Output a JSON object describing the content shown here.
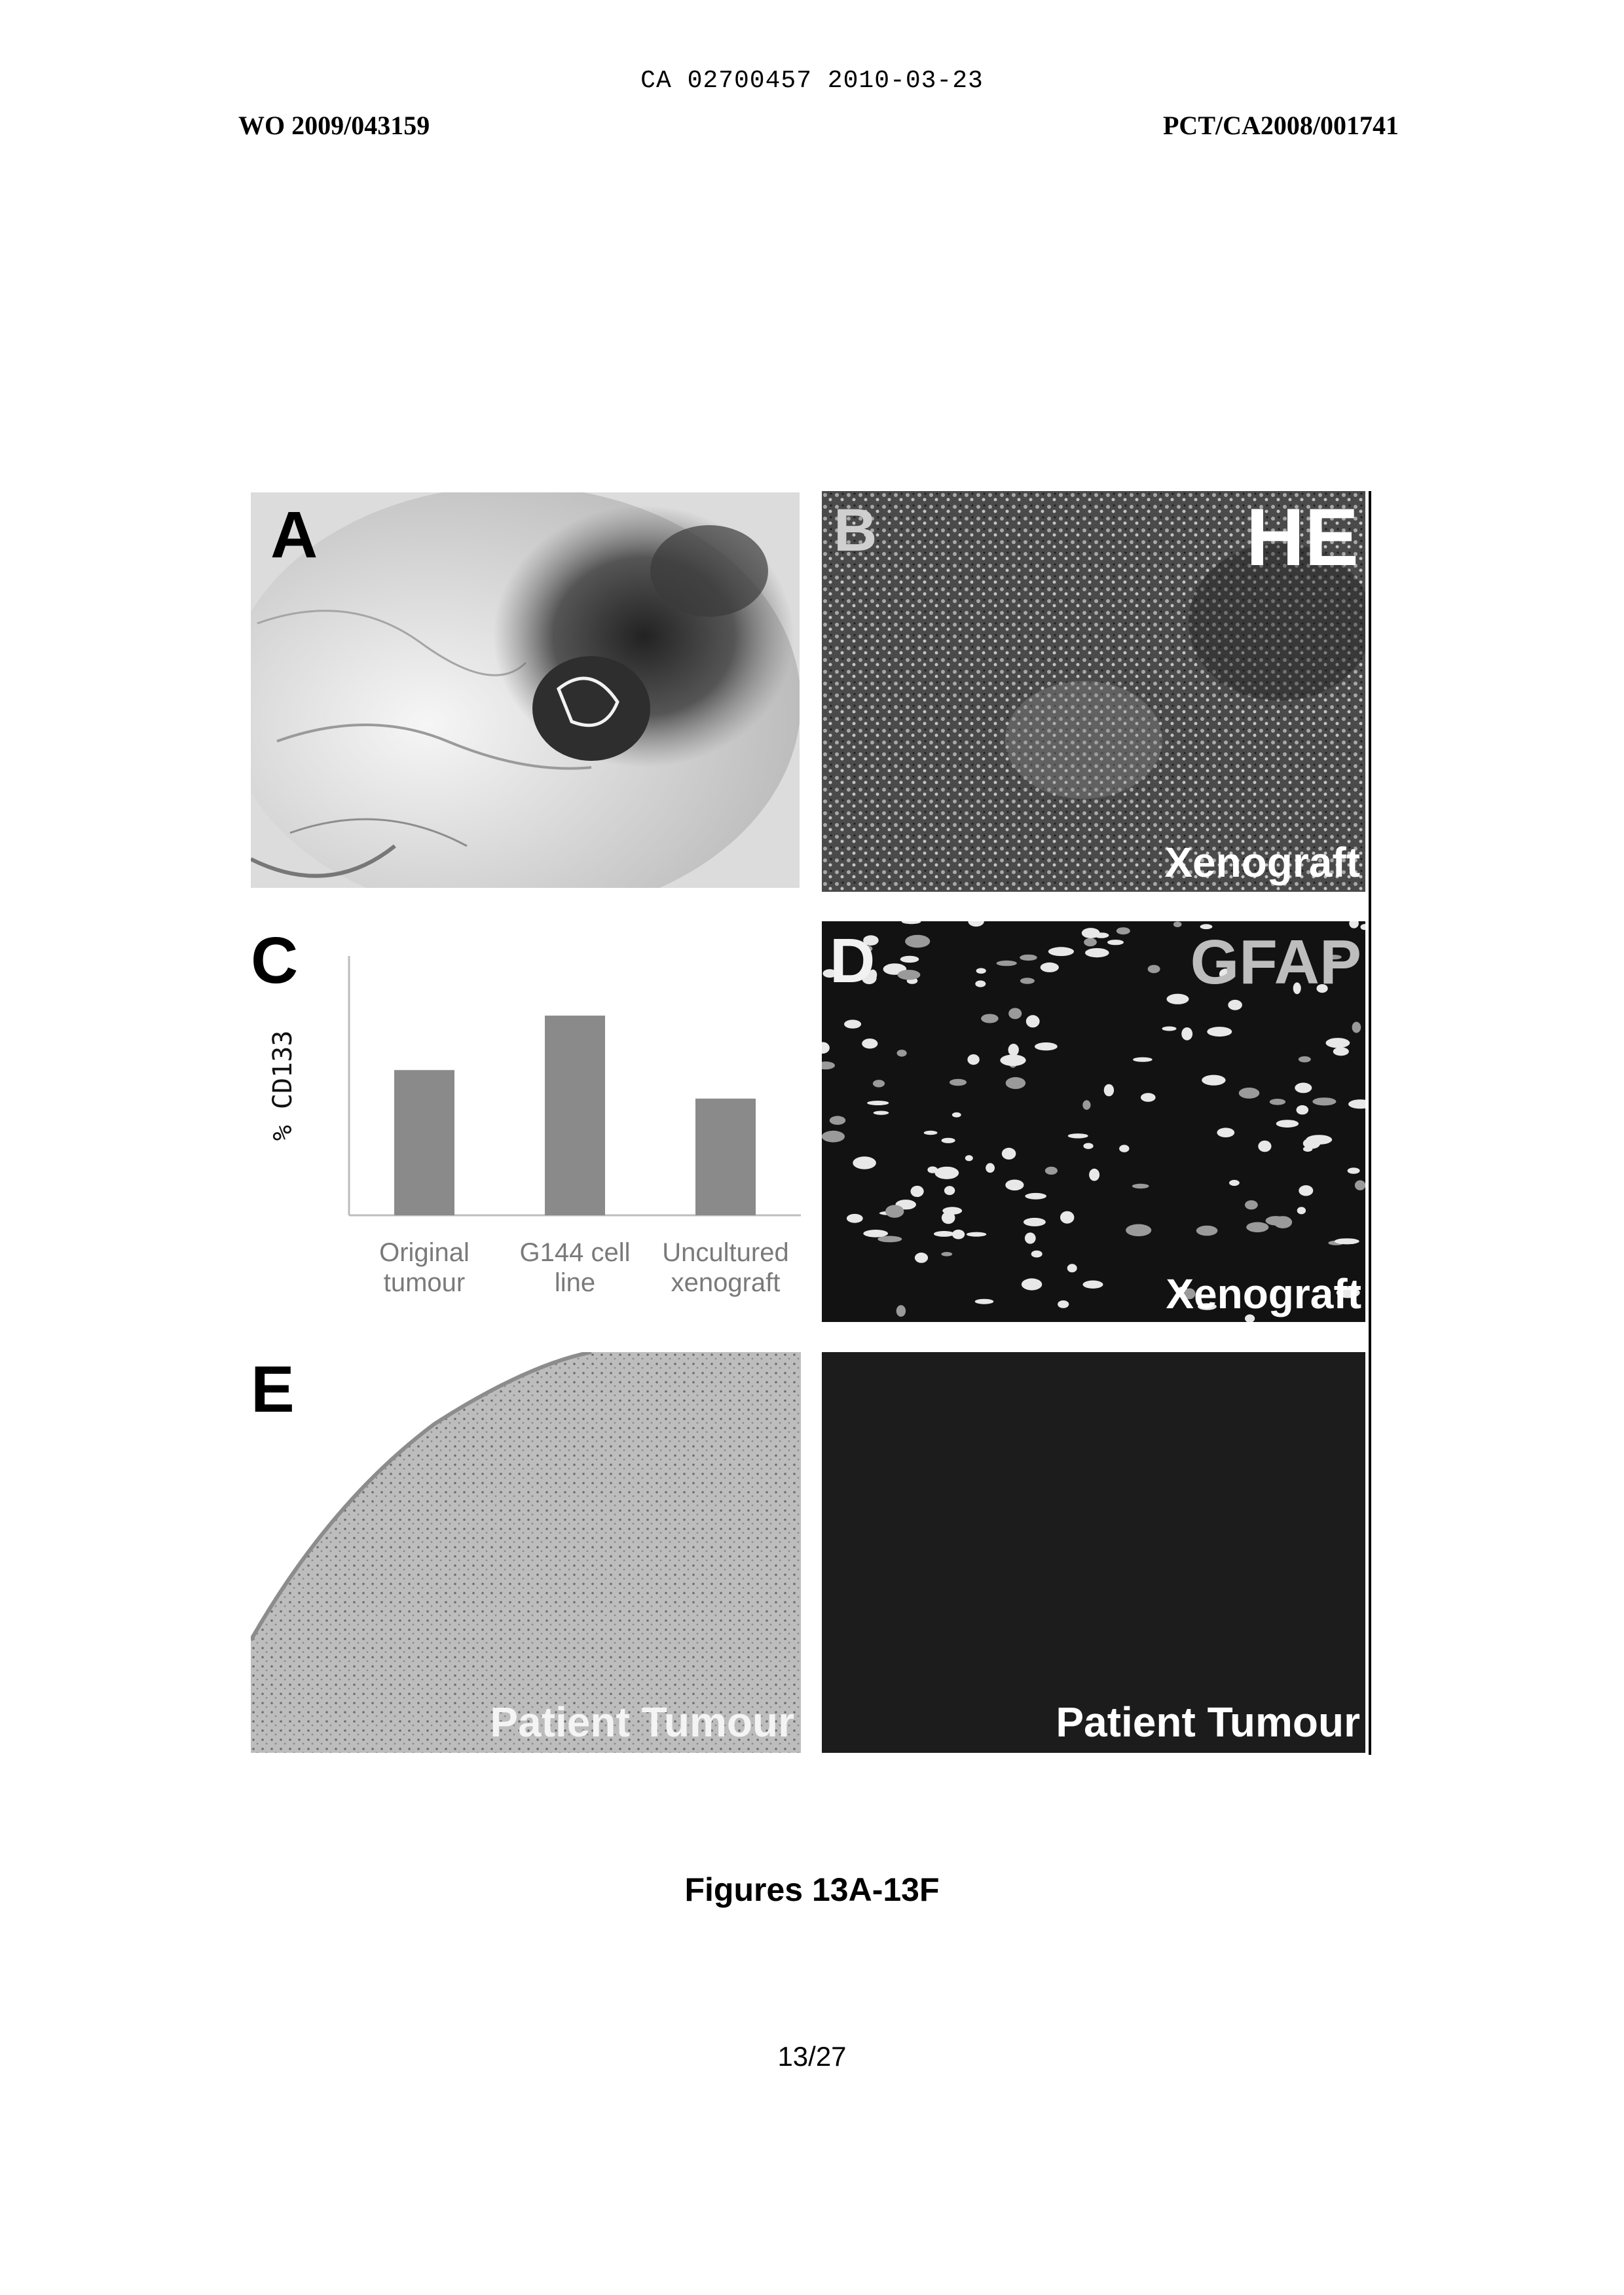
{
  "header": {
    "ca_line": "CA 02700457 2010-03-23",
    "wo_number": "WO 2009/043159",
    "pct_number": "PCT/CA2008/001741"
  },
  "figure": {
    "panel_a": {
      "label": "A"
    },
    "panel_b": {
      "label": "B",
      "title": "HE",
      "caption": "Xenograft"
    },
    "panel_c": {
      "label": "C"
    },
    "panel_d": {
      "label": "D",
      "title": "GFAP",
      "caption": "Xenograft"
    },
    "panel_e": {
      "label": "E",
      "caption": "Patient Tumour"
    },
    "panel_f": {
      "caption": "Patient Tumour"
    }
  },
  "chart_data": {
    "type": "bar",
    "ylabel": "% CD133",
    "categories": [
      "Original tumour",
      "G144 cell line",
      "Uncultured xenograft"
    ],
    "category_lines": [
      [
        "Original",
        "tumour"
      ],
      [
        "G144 cell",
        "line"
      ],
      [
        "Uncultured",
        "xenograft"
      ]
    ],
    "values": [
      56,
      77,
      45
    ],
    "ylim": [
      0,
      100
    ],
    "grid": false,
    "bar_color": "#8a8a8a"
  },
  "caption": "Figures 13A-13F",
  "page_number": "13/27"
}
